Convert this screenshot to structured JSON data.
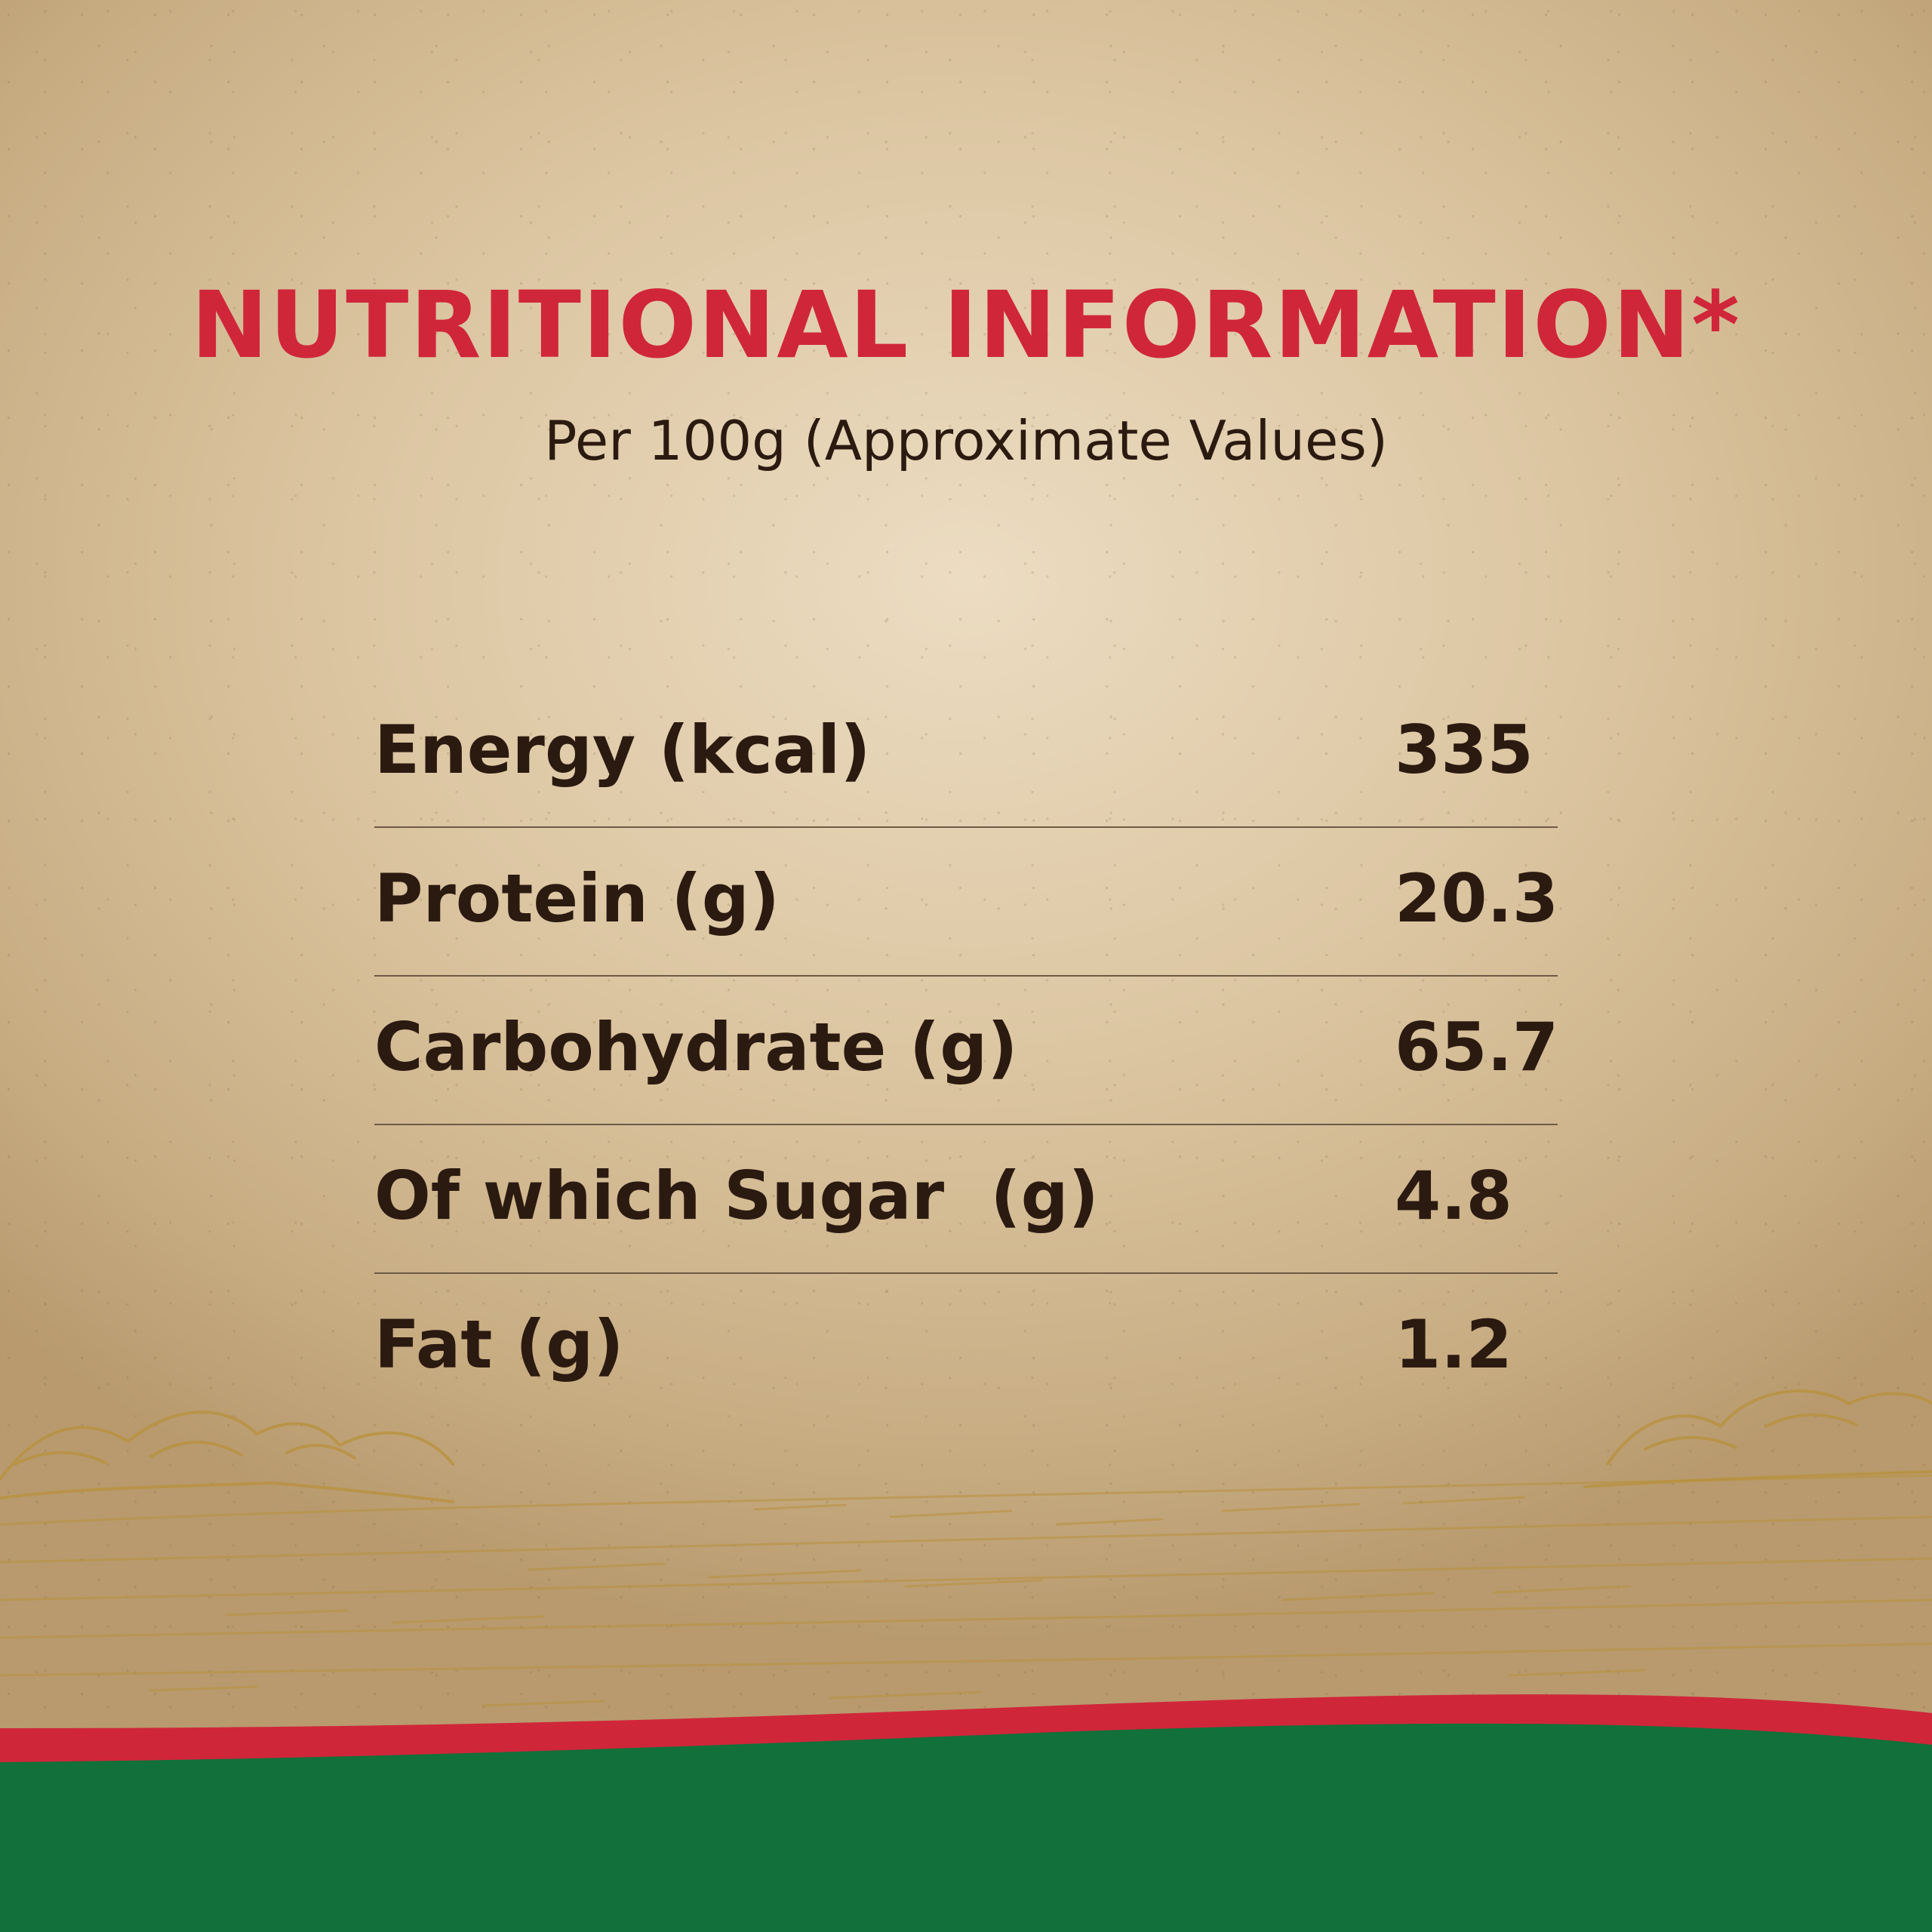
{
  "title": "NUTRITIONAL INFORMATION*",
  "subtitle": "Per 100g (Approximate Values)",
  "rows": [
    {
      "label": "Energy (kcal)",
      "value": "335"
    },
    {
      "label": "Protein (g)",
      "value": "20.3"
    },
    {
      "label": "Carbohydrate (g)",
      "value": "65.7"
    },
    {
      "label": "Of which Sugar  (g)",
      "value": "4.8"
    },
    {
      "label": "Fat (g)",
      "value": "1.2"
    }
  ],
  "colors": {
    "title_red": "#d0263a",
    "text_brown": "#2b1a10",
    "band_red": "#d0263a",
    "band_green": "#12703a",
    "sketch_gold": "#b8913c"
  }
}
